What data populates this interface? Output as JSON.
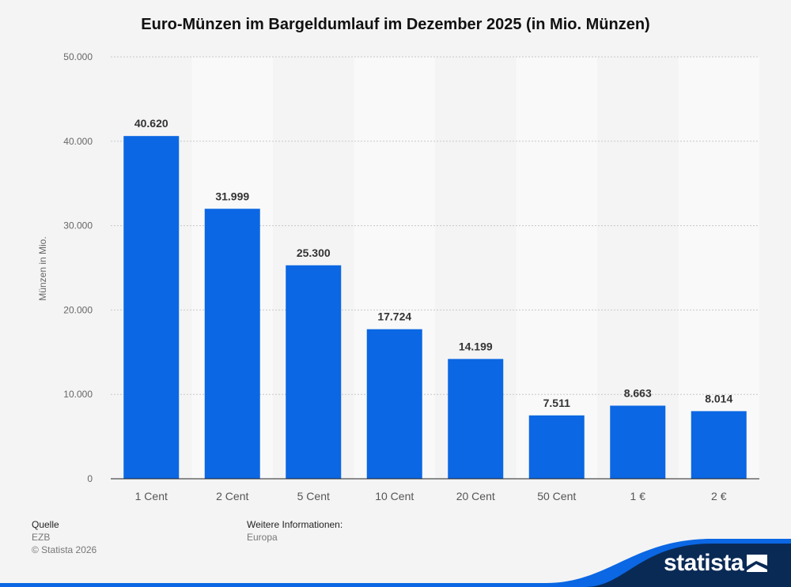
{
  "chart_data": {
    "type": "bar",
    "title": "Euro-Münzen im Bargeldumlauf im Dezember 2025 (in Mio. Münzen)",
    "xlabel": "",
    "ylabel": "Münzen in Mio.",
    "ylim": [
      0,
      50000
    ],
    "yticks": [
      0,
      10000,
      20000,
      30000,
      40000,
      50000
    ],
    "ytick_labels": [
      "0",
      "10.000",
      "20.000",
      "30.000",
      "40.000",
      "50.000"
    ],
    "categories": [
      "1 Cent",
      "2 Cent",
      "5 Cent",
      "10 Cent",
      "20 Cent",
      "50 Cent",
      "1 €",
      "2 €"
    ],
    "values": [
      40620,
      31999,
      25300,
      17724,
      14199,
      7511,
      8663,
      8014
    ],
    "value_labels": [
      "40.620",
      "31.999",
      "25.300",
      "17.724",
      "14.199",
      "7.511",
      "8.663",
      "8.014"
    ],
    "bar_color": "#0b67e3",
    "grid": true
  },
  "footer": {
    "source_heading": "Quelle",
    "source_value": "EZB",
    "copyright": "© Statista 2026",
    "info_heading": "Weitere Informationen:",
    "info_value": "Europa"
  },
  "branding": {
    "logo_text": "statista",
    "logo_color": "#0a2a56",
    "accent_color": "#0b67e3"
  }
}
